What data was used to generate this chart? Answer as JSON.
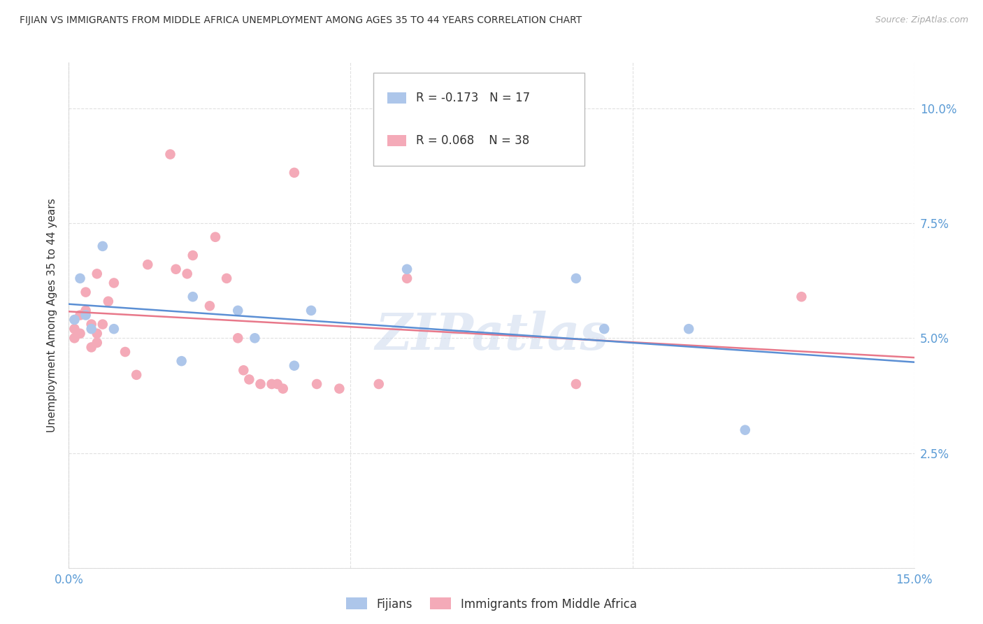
{
  "title": "FIJIAN VS IMMIGRANTS FROM MIDDLE AFRICA UNEMPLOYMENT AMONG AGES 35 TO 44 YEARS CORRELATION CHART",
  "source": "Source: ZipAtlas.com",
  "ylabel": "Unemployment Among Ages 35 to 44 years",
  "xlim": [
    0.0,
    0.15
  ],
  "ylim": [
    0.0,
    0.11
  ],
  "yticks": [
    0.0,
    0.025,
    0.05,
    0.075,
    0.1
  ],
  "yticklabels_right": [
    "",
    "2.5%",
    "5.0%",
    "7.5%",
    "10.0%"
  ],
  "xtick_left": 0.0,
  "xtick_right": 0.15,
  "xtick_left_label": "0.0%",
  "xtick_right_label": "15.0%",
  "background_color": "#ffffff",
  "grid_color": "#e0e0e0",
  "watermark": "ZIPatlas",
  "fijian_color": "#adc6ea",
  "pink_color": "#f4aab8",
  "fijian_line_color": "#5b8fd4",
  "pink_line_color": "#e8788a",
  "fijian_R": -0.173,
  "fijian_N": 17,
  "pink_R": 0.068,
  "pink_N": 38,
  "fijian_x": [
    0.001,
    0.002,
    0.003,
    0.004,
    0.006,
    0.008,
    0.02,
    0.022,
    0.03,
    0.033,
    0.04,
    0.043,
    0.06,
    0.09,
    0.095,
    0.11,
    0.12
  ],
  "fijian_y": [
    0.054,
    0.063,
    0.055,
    0.052,
    0.07,
    0.052,
    0.045,
    0.059,
    0.056,
    0.05,
    0.044,
    0.056,
    0.065,
    0.063,
    0.052,
    0.052,
    0.03
  ],
  "pink_x": [
    0.001,
    0.001,
    0.002,
    0.002,
    0.003,
    0.003,
    0.004,
    0.004,
    0.005,
    0.005,
    0.005,
    0.006,
    0.007,
    0.008,
    0.01,
    0.012,
    0.014,
    0.018,
    0.019,
    0.021,
    0.022,
    0.025,
    0.026,
    0.028,
    0.03,
    0.031,
    0.032,
    0.034,
    0.036,
    0.037,
    0.038,
    0.04,
    0.044,
    0.048,
    0.055,
    0.06,
    0.09,
    0.13
  ],
  "pink_y": [
    0.05,
    0.052,
    0.051,
    0.055,
    0.056,
    0.06,
    0.048,
    0.053,
    0.049,
    0.051,
    0.064,
    0.053,
    0.058,
    0.062,
    0.047,
    0.042,
    0.066,
    0.09,
    0.065,
    0.064,
    0.068,
    0.057,
    0.072,
    0.063,
    0.05,
    0.043,
    0.041,
    0.04,
    0.04,
    0.04,
    0.039,
    0.086,
    0.04,
    0.039,
    0.04,
    0.063,
    0.04,
    0.059
  ],
  "legend_fijian_label": "Fijians",
  "legend_pink_label": "Immigrants from Middle Africa"
}
